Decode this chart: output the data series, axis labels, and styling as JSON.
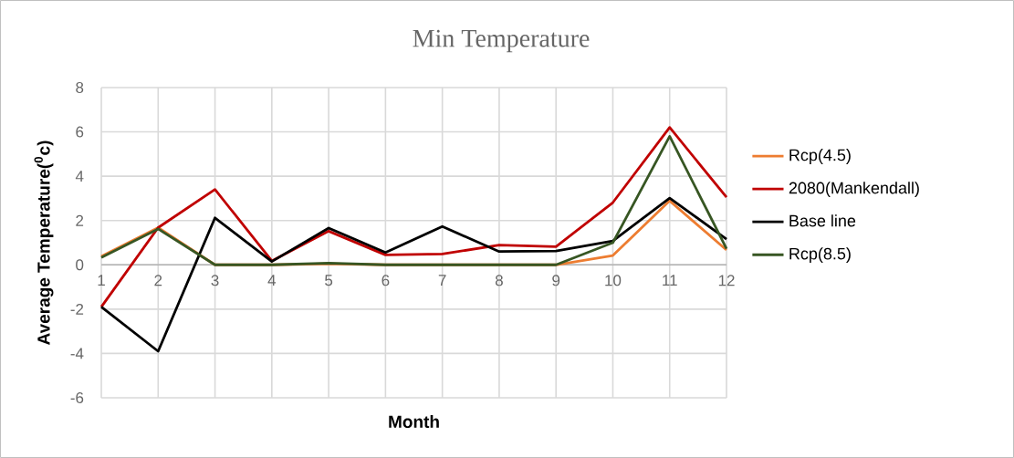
{
  "chart_data": {
    "type": "line",
    "title": "Min Temperature",
    "xlabel": "Month",
    "ylabel": "Average Temperature($^{0}$c)",
    "x": [
      1,
      2,
      3,
      4,
      5,
      6,
      7,
      8,
      9,
      10,
      11,
      12
    ],
    "series": [
      {
        "name": "Rcp(4.5)",
        "color": "#ed7d31",
        "values": [
          0.38,
          1.68,
          0,
          0,
          0.05,
          0,
          0,
          0,
          0,
          0.42,
          2.89,
          0.67
        ]
      },
      {
        "name": "2080(Mankendall)",
        "color": "#c00000",
        "values": [
          -1.9,
          1.68,
          3.4,
          0.18,
          1.52,
          0.45,
          0.49,
          0.89,
          0.82,
          2.81,
          6.2,
          3.05
        ]
      },
      {
        "name": "Base line",
        "color": "#000000",
        "values": [
          -1.9,
          -3.9,
          2.12,
          0.15,
          1.66,
          0.56,
          1.73,
          0.6,
          0.62,
          1.08,
          3.01,
          1.16
        ]
      },
      {
        "name": "Rcp(8.5)",
        "color": "#375623",
        "values": [
          0.33,
          1.62,
          0,
          0,
          0.08,
          0,
          0,
          0,
          0,
          1.0,
          5.8,
          0.73
        ]
      }
    ],
    "xlim": [
      1,
      12
    ],
    "xticks": [
      1,
      2,
      3,
      4,
      5,
      6,
      7,
      8,
      9,
      10,
      11,
      12
    ],
    "ylim": [
      -6,
      8
    ],
    "yticks": [
      -6,
      -4,
      -2,
      0,
      2,
      4,
      6,
      8
    ],
    "grid": true,
    "legend": "right",
    "marker": "none",
    "line_style": "solid"
  }
}
